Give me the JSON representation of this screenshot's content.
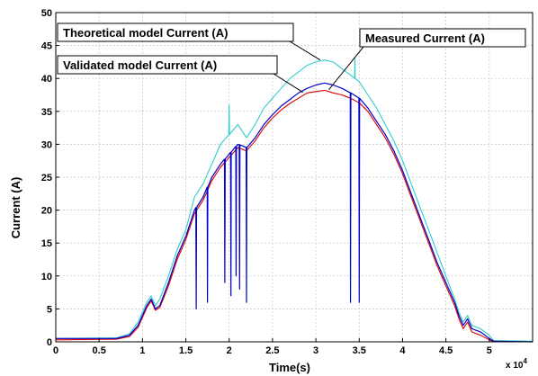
{
  "chart_data": {
    "type": "line",
    "title": "",
    "xlabel": "Time(s)",
    "ylabel": "Current (A)",
    "x_multiplier_label": "x 10",
    "x_multiplier_exp": "4",
    "xlim": [
      0,
      5.5
    ],
    "ylim": [
      0,
      50
    ],
    "x_ticks": [
      0,
      0.5,
      1,
      1.5,
      2,
      2.5,
      3,
      3.5,
      4,
      4.5,
      5
    ],
    "x_tick_labels": [
      "0",
      "0.5",
      "1",
      "1.5",
      "2",
      "2.5",
      "3",
      "3.5",
      "4",
      "4.5",
      "5"
    ],
    "y_ticks": [
      0,
      5,
      10,
      15,
      20,
      25,
      30,
      35,
      40,
      45,
      50
    ],
    "y_tick_labels": [
      "0",
      "5",
      "10",
      "15",
      "20",
      "25",
      "30",
      "35",
      "40",
      "45",
      "50"
    ],
    "grid": true,
    "x_units_note": "x values in units of 10^4 s",
    "series": [
      {
        "name": "Theoretical model Current (A)",
        "color": "#33cccc",
        "points": [
          [
            0,
            0.5
          ],
          [
            0.7,
            0.6
          ],
          [
            0.85,
            1.2
          ],
          [
            0.95,
            3
          ],
          [
            1.05,
            6
          ],
          [
            1.1,
            7
          ],
          [
            1.15,
            5.5
          ],
          [
            1.2,
            6.5
          ],
          [
            1.3,
            10
          ],
          [
            1.4,
            14
          ],
          [
            1.5,
            17
          ],
          [
            1.6,
            22
          ],
          [
            1.7,
            24
          ],
          [
            1.8,
            27
          ],
          [
            1.9,
            30
          ],
          [
            2.0,
            31.5
          ],
          [
            2.1,
            33
          ],
          [
            2.2,
            31
          ],
          [
            2.3,
            33
          ],
          [
            2.4,
            35.5
          ],
          [
            2.5,
            37
          ],
          [
            2.6,
            38.5
          ],
          [
            2.7,
            40
          ],
          [
            2.8,
            41
          ],
          [
            2.9,
            42
          ],
          [
            3.0,
            42.5
          ],
          [
            3.1,
            42.8
          ],
          [
            3.2,
            42.5
          ],
          [
            3.3,
            41.5
          ],
          [
            3.4,
            40.5
          ],
          [
            3.5,
            39.5
          ],
          [
            3.6,
            37.5
          ],
          [
            3.7,
            35.5
          ],
          [
            3.8,
            33
          ],
          [
            3.9,
            30.5
          ],
          [
            4.0,
            27.5
          ],
          [
            4.1,
            24
          ],
          [
            4.2,
            20.5
          ],
          [
            4.3,
            17
          ],
          [
            4.4,
            13.5
          ],
          [
            4.5,
            10
          ],
          [
            4.6,
            6.5
          ],
          [
            4.65,
            4.5
          ],
          [
            4.7,
            3
          ],
          [
            4.75,
            4
          ],
          [
            4.8,
            2.5
          ],
          [
            4.9,
            2
          ],
          [
            5.0,
            1
          ],
          [
            5.05,
            0.2
          ],
          [
            5.5,
            0.1
          ]
        ],
        "spikes": [
          [
            2.0,
            36
          ],
          [
            3.45,
            43
          ]
        ]
      },
      {
        "name": "Validated model Current (A)",
        "color": "#0000cc",
        "points": [
          [
            0,
            0.5
          ],
          [
            0.7,
            0.5
          ],
          [
            0.85,
            1
          ],
          [
            0.95,
            2.5
          ],
          [
            1.05,
            5.5
          ],
          [
            1.1,
            6.5
          ],
          [
            1.15,
            5
          ],
          [
            1.2,
            5.5
          ],
          [
            1.3,
            9
          ],
          [
            1.4,
            13
          ],
          [
            1.5,
            16
          ],
          [
            1.6,
            20
          ],
          [
            1.7,
            22
          ],
          [
            1.8,
            25
          ],
          [
            1.9,
            27
          ],
          [
            2.0,
            28.5
          ],
          [
            2.1,
            30
          ],
          [
            2.2,
            29.5
          ],
          [
            2.3,
            31
          ],
          [
            2.4,
            33
          ],
          [
            2.5,
            34.5
          ],
          [
            2.6,
            35.8
          ],
          [
            2.7,
            36.8
          ],
          [
            2.8,
            37.8
          ],
          [
            2.9,
            38.5
          ],
          [
            3.0,
            39
          ],
          [
            3.1,
            39.3
          ],
          [
            3.2,
            39
          ],
          [
            3.3,
            38.5
          ],
          [
            3.4,
            37.8
          ],
          [
            3.5,
            37
          ],
          [
            3.6,
            35.5
          ],
          [
            3.7,
            33.5
          ],
          [
            3.8,
            31.5
          ],
          [
            3.9,
            29
          ],
          [
            4.0,
            26
          ],
          [
            4.1,
            22.5
          ],
          [
            4.2,
            19
          ],
          [
            4.3,
            15.5
          ],
          [
            4.4,
            12
          ],
          [
            4.5,
            9
          ],
          [
            4.6,
            6
          ],
          [
            4.65,
            4
          ],
          [
            4.7,
            2.5
          ],
          [
            4.75,
            3.5
          ],
          [
            4.8,
            2
          ],
          [
            4.9,
            1.5
          ],
          [
            5.0,
            0.5
          ],
          [
            5.05,
            0.1
          ],
          [
            5.5,
            0
          ]
        ],
        "spikes": [
          [
            1.62,
            5
          ],
          [
            1.75,
            6
          ],
          [
            1.95,
            9
          ],
          [
            2.02,
            7
          ],
          [
            2.08,
            10
          ],
          [
            2.12,
            8
          ],
          [
            2.2,
            6
          ],
          [
            3.4,
            6
          ],
          [
            3.5,
            6
          ]
        ]
      },
      {
        "name": "Measured Current (A)",
        "color": "#dd0000",
        "points": [
          [
            0,
            0.3
          ],
          [
            0.7,
            0.4
          ],
          [
            0.85,
            0.8
          ],
          [
            0.95,
            2.2
          ],
          [
            1.05,
            5.2
          ],
          [
            1.1,
            6.2
          ],
          [
            1.15,
            4.8
          ],
          [
            1.2,
            5.2
          ],
          [
            1.3,
            8.5
          ],
          [
            1.4,
            12.5
          ],
          [
            1.5,
            15.5
          ],
          [
            1.6,
            19.5
          ],
          [
            1.7,
            21.5
          ],
          [
            1.8,
            24.5
          ],
          [
            1.9,
            26.5
          ],
          [
            2.0,
            28
          ],
          [
            2.1,
            29.5
          ],
          [
            2.2,
            29
          ],
          [
            2.3,
            30.5
          ],
          [
            2.4,
            32.5
          ],
          [
            2.5,
            34
          ],
          [
            2.6,
            35.2
          ],
          [
            2.7,
            36.2
          ],
          [
            2.8,
            37
          ],
          [
            2.9,
            37.8
          ],
          [
            3.0,
            38
          ],
          [
            3.1,
            38.2
          ],
          [
            3.2,
            37.8
          ],
          [
            3.3,
            37.5
          ],
          [
            3.4,
            37
          ],
          [
            3.5,
            36.3
          ],
          [
            3.6,
            35
          ],
          [
            3.7,
            33
          ],
          [
            3.8,
            31
          ],
          [
            3.9,
            28.5
          ],
          [
            4.0,
            25.5
          ],
          [
            4.1,
            22
          ],
          [
            4.2,
            18.5
          ],
          [
            4.3,
            15
          ],
          [
            4.4,
            11.5
          ],
          [
            4.5,
            8.5
          ],
          [
            4.6,
            5.5
          ],
          [
            4.65,
            3.5
          ],
          [
            4.7,
            2
          ],
          [
            4.75,
            3
          ],
          [
            4.8,
            1.5
          ],
          [
            4.9,
            1
          ],
          [
            5.0,
            0.3
          ],
          [
            5.05,
            0
          ],
          [
            5.5,
            0
          ]
        ]
      }
    ],
    "annotations": [
      {
        "text": "Theoretical model Current (A)",
        "series": 0
      },
      {
        "text": "Measured Current (A)",
        "series": 2
      },
      {
        "text": "Validated model Current (A)",
        "series": 1
      }
    ]
  }
}
